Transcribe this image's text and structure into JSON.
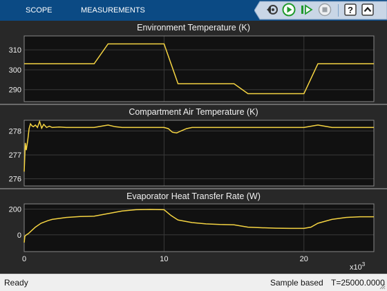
{
  "toolbar": {
    "tabs": [
      "SCOPE",
      "MEASUREMENTS"
    ],
    "buttons": [
      "gear-step-back-icon",
      "run-icon",
      "step-forward-icon",
      "stop-icon",
      "help-icon",
      "collapse-icon"
    ],
    "colors": {
      "background": "#0b4a84",
      "run": "#2fbf3a",
      "stop": "#9aa0a6"
    }
  },
  "panels": [
    {
      "title": "Environment Temperature (K)",
      "yticks": [
        "310",
        "300",
        "290"
      ]
    },
    {
      "title": "Compartment Air Temperature (K)",
      "yticks": [
        "278",
        "277",
        "276"
      ]
    },
    {
      "title": "Evaporator Heat Transfer Rate (W)",
      "yticks": [
        "200",
        "0"
      ]
    }
  ],
  "xaxis": {
    "ticks": [
      "0",
      "10",
      "20"
    ],
    "multiplier": "x10",
    "exponent": "3"
  },
  "status": {
    "left": "Ready",
    "mode": "Sample based",
    "time": "T=25000.0000"
  },
  "chart_data": [
    {
      "type": "line",
      "title": "Environment Temperature (K)",
      "xlim": [
        0,
        25000
      ],
      "ylim": [
        284,
        317
      ],
      "grid": true,
      "color": "#f5d442",
      "x": [
        0,
        5000,
        6000,
        10000,
        11000,
        15000,
        16000,
        20000,
        21000,
        25000
      ],
      "y": [
        303,
        303,
        313,
        313,
        293,
        293,
        288,
        288,
        303,
        303
      ]
    },
    {
      "type": "line",
      "title": "Compartment Air Temperature (K)",
      "xlim": [
        0,
        25000
      ],
      "ylim": [
        275.7,
        278.45
      ],
      "grid": true,
      "color": "#f5d442",
      "x": [
        0,
        80,
        150,
        250,
        350,
        450,
        550,
        650,
        800,
        950,
        1100,
        1250,
        1400,
        1600,
        1800,
        2000,
        2500,
        3000,
        4000,
        5000,
        5500,
        6000,
        6500,
        7000,
        8000,
        9000,
        10000,
        10300,
        10600,
        10900,
        11200,
        11600,
        12000,
        13000,
        15000,
        17000,
        19000,
        20000,
        20500,
        21000,
        21500,
        22000,
        23000,
        25000
      ],
      "y": [
        276.3,
        277.5,
        277.2,
        277.6,
        278.1,
        278.3,
        278.22,
        278.18,
        278.25,
        278.15,
        278.4,
        278.12,
        278.28,
        278.15,
        278.2,
        278.15,
        278.17,
        278.15,
        278.15,
        278.15,
        278.2,
        278.25,
        278.18,
        278.15,
        278.15,
        278.15,
        278.15,
        278.1,
        277.95,
        277.92,
        278.0,
        278.1,
        278.15,
        278.15,
        278.15,
        278.15,
        278.15,
        278.15,
        278.2,
        278.25,
        278.2,
        278.15,
        278.15,
        278.15
      ]
    },
    {
      "type": "line",
      "title": "Evaporator Heat Transfer Rate (W)",
      "xlim": [
        0,
        25000
      ],
      "ylim": [
        -130,
        240
      ],
      "grid": true,
      "color": "#f5d442",
      "x": [
        0,
        50,
        150,
        300,
        500,
        800,
        1200,
        1700,
        2000,
        3000,
        4000,
        5000,
        6000,
        7000,
        8000,
        9000,
        10000,
        10500,
        11000,
        12000,
        13000,
        14000,
        15000,
        16000,
        17000,
        18000,
        19000,
        20000,
        20500,
        21000,
        22000,
        23000,
        24000,
        25000
      ],
      "y": [
        -60,
        -10,
        0,
        10,
        30,
        60,
        90,
        110,
        120,
        135,
        142,
        145,
        165,
        185,
        195,
        197,
        195,
        150,
        115,
        95,
        85,
        80,
        78,
        60,
        55,
        52,
        50,
        50,
        60,
        90,
        120,
        135,
        140,
        140
      ]
    }
  ]
}
